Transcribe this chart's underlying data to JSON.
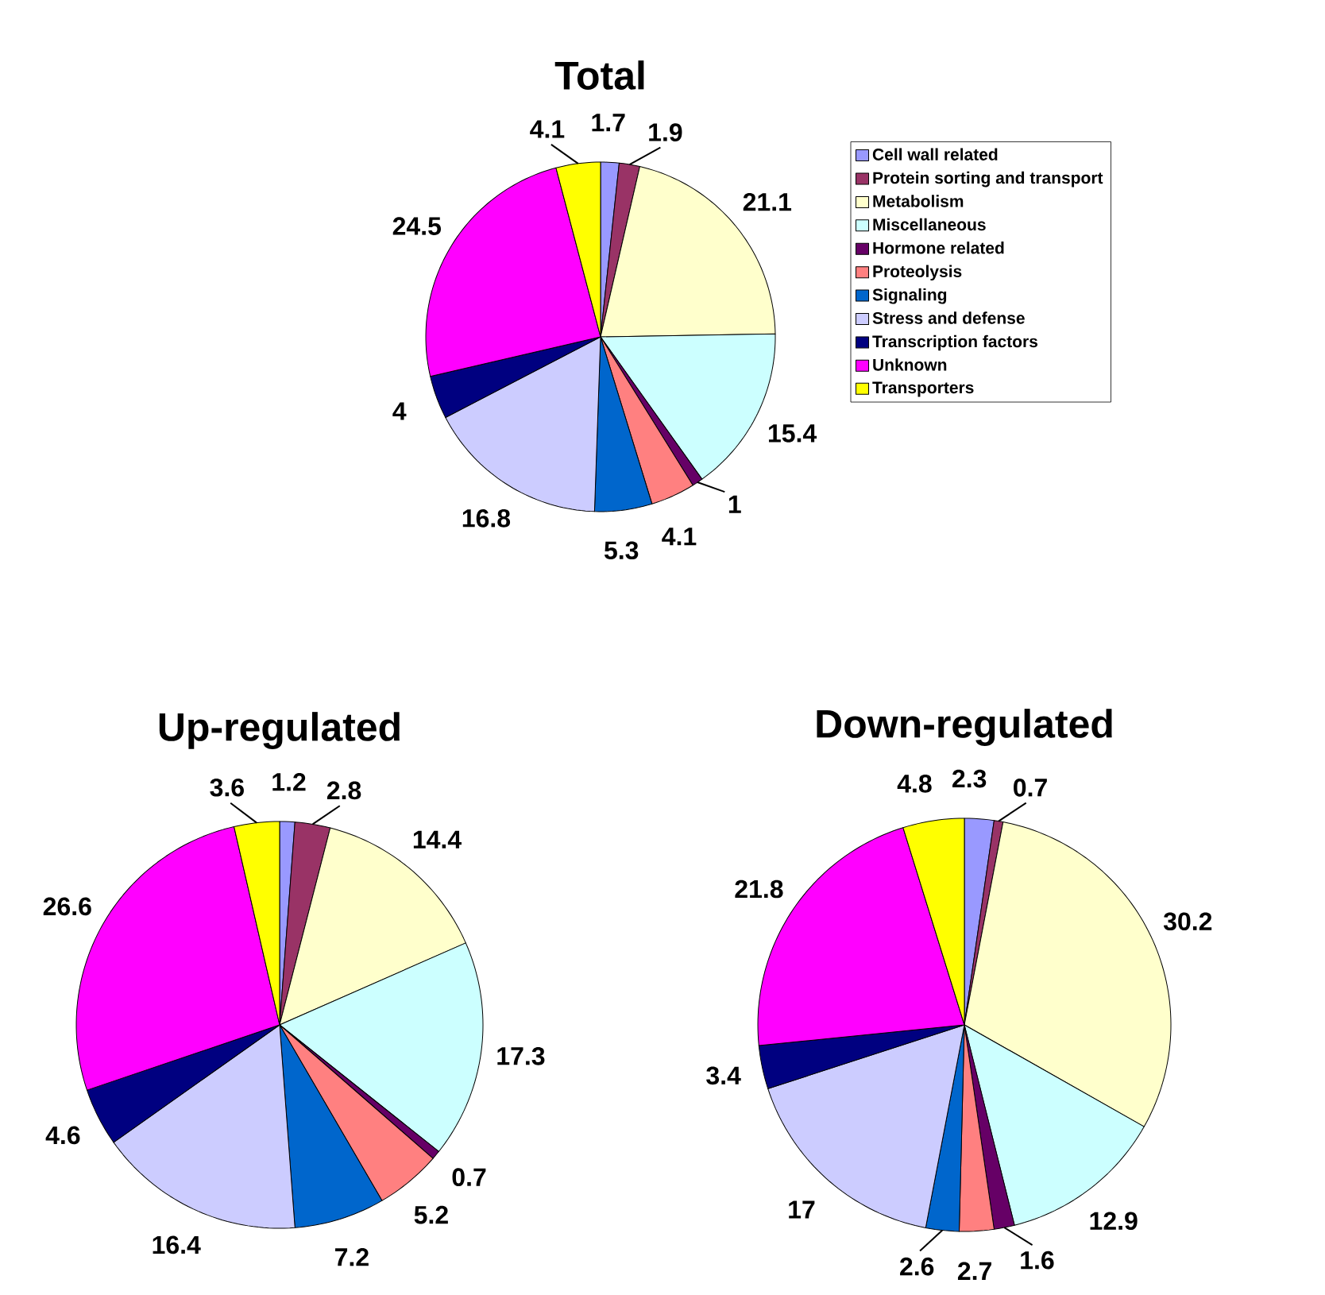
{
  "chart_data": [
    {
      "type": "pie",
      "title": "Total",
      "categories": [
        "Cell wall related",
        "Protein sorting and transport",
        "Metabolism",
        "Miscellaneous",
        "Hormone related",
        "Proteolysis",
        "Signaling",
        "Stress and defense",
        "Transcription factors",
        "Unknown",
        "Transporters"
      ],
      "values": [
        1.7,
        1.9,
        21.1,
        15.4,
        1,
        4.1,
        5.3,
        16.8,
        4,
        24.5,
        4.1
      ],
      "colors": [
        "#9999ff",
        "#993366",
        "#ffffcc",
        "#ccffff",
        "#660066",
        "#ff8080",
        "#0066cc",
        "#ccccff",
        "#000080",
        "#ff00ff",
        "#ffff00"
      ],
      "data_labels": true,
      "legend": "right"
    },
    {
      "type": "pie",
      "title": "Up-regulated",
      "categories": [
        null,
        null,
        null,
        null,
        null,
        null,
        null,
        null,
        null,
        null,
        null
      ],
      "values": [
        1.2,
        2.8,
        14.4,
        17.3,
        0.7,
        5.2,
        7.2,
        16.4,
        4.6,
        26.6,
        3.6
      ],
      "colors": [
        "#9999ff",
        "#993366",
        "#ffffcc",
        "#ccffff",
        "#660066",
        "#ff8080",
        "#0066cc",
        "#ccccff",
        "#000080",
        "#ff00ff",
        "#ffff00"
      ],
      "data_labels": true
    },
    {
      "type": "pie",
      "title": "Down-regulated",
      "categories": [
        null,
        null,
        null,
        null,
        null,
        null,
        null,
        null,
        null,
        null,
        null
      ],
      "values": [
        2.3,
        0.7,
        30.2,
        12.9,
        1.6,
        2.7,
        2.6,
        17,
        3.4,
        21.8,
        4.8
      ],
      "colors": [
        "#9999ff",
        "#993366",
        "#ffffcc",
        "#ccffff",
        "#660066",
        "#ff8080",
        "#0066cc",
        "#ccccff",
        "#000080",
        "#ff00ff",
        "#ffff00"
      ],
      "data_labels": true
    }
  ]
}
